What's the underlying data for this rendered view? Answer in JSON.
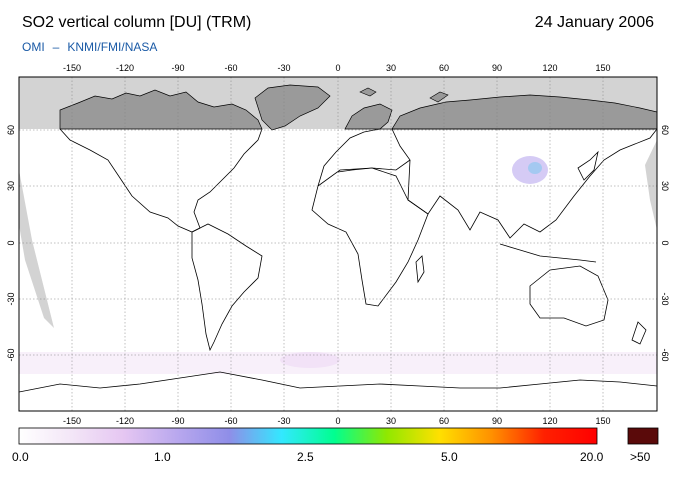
{
  "header": {
    "title": "SO2 vertical column [DU] (TRM)",
    "date": "24 January 2006",
    "instrument": "OMI",
    "separator": "–",
    "provider": "KNMI/FMI/NASA"
  },
  "map": {
    "lon_ticks_top": [
      "-150",
      "-120",
      "-90",
      "-60",
      "-30",
      "0",
      "30",
      "60",
      "90",
      "120",
      "150"
    ],
    "lon_ticks_bottom": [
      "-150",
      "-120",
      "-90",
      "-60",
      "-30",
      "0",
      "30",
      "60",
      "90",
      "120",
      "150"
    ],
    "lat_ticks_left": [
      "60",
      "30",
      "0",
      "-30",
      "-60"
    ],
    "lat_ticks_right": [
      "60",
      "30",
      "0",
      "-30",
      "-60"
    ],
    "lon_range": [
      -180,
      180
    ],
    "lat_range": [
      -90,
      90
    ],
    "grid": true,
    "colors": {
      "no_data": "#d3d3d3",
      "polar_night": "#9a9a9a",
      "coastline": "#000000"
    }
  },
  "colorbar": {
    "labels": [
      "0.0",
      "1.0",
      "2.5",
      "5.0",
      "20.0"
    ],
    "overflow_label": ">50",
    "overflow_color": "#5a0a0a",
    "gradient": [
      "#ffffff",
      "#f3e6f7",
      "#e5c6f2",
      "#b9a8ee",
      "#8f8ee8",
      "#33e8ff",
      "#00ff90",
      "#90e800",
      "#ffe000",
      "#ff9000",
      "#ff2000",
      "#ff0000"
    ]
  }
}
